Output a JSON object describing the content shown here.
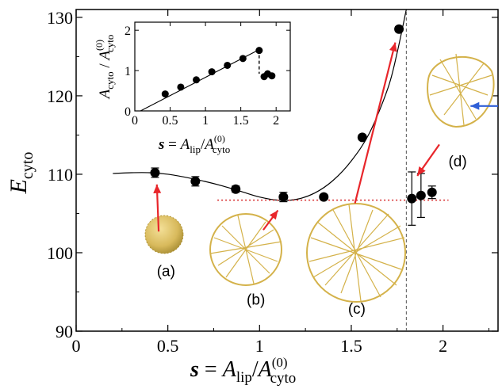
{
  "chart_data": {
    "type": "scatter",
    "main": {
      "xlabel": {
        "var": "s",
        "eq": " = ",
        "num": "A",
        "num_sub": "lip",
        "slash": "/",
        "den": "A",
        "den_sub": "cyto",
        "den_sup": "(0)"
      },
      "ylabel": {
        "var": "E",
        "sub": "cyto"
      },
      "xlim": [
        0,
        2.3
      ],
      "ylim": [
        90,
        131
      ],
      "xticks": [
        "0",
        "0.5",
        "1",
        "1.5",
        "2"
      ],
      "xtick_values": [
        0,
        0.5,
        1,
        1.5,
        2
      ],
      "yticks": [
        "90",
        "100",
        "110",
        "120",
        "130"
      ],
      "ytick_values": [
        90,
        100,
        110,
        120,
        130
      ],
      "points": [
        {
          "x": 0.43,
          "y": 110.2,
          "err": 0.6
        },
        {
          "x": 0.65,
          "y": 109.1,
          "err": 0.6
        },
        {
          "x": 0.87,
          "y": 108.1,
          "err": 0.4
        },
        {
          "x": 1.13,
          "y": 107.1,
          "err": 0.6
        },
        {
          "x": 1.35,
          "y": 107.1,
          "err": 0.3
        },
        {
          "x": 1.56,
          "y": 114.7,
          "err": 0.3
        },
        {
          "x": 1.76,
          "y": 128.5,
          "err": 0.3
        },
        {
          "x": 1.83,
          "y": 106.9,
          "err": 3.4
        },
        {
          "x": 1.88,
          "y": 107.3,
          "err": 2.8
        },
        {
          "x": 1.94,
          "y": 107.7,
          "err": 0.8
        }
      ],
      "fit_curve": [
        [
          0.2,
          110.1
        ],
        [
          0.3,
          110.2
        ],
        [
          0.4,
          110.2
        ],
        [
          0.5,
          110.0
        ],
        [
          0.6,
          109.6
        ],
        [
          0.7,
          109.1
        ],
        [
          0.8,
          108.5
        ],
        [
          0.9,
          107.8
        ],
        [
          1.0,
          107.1
        ],
        [
          1.1,
          106.7
        ],
        [
          1.2,
          106.8
        ],
        [
          1.3,
          107.6
        ],
        [
          1.4,
          109.2
        ],
        [
          1.5,
          111.7
        ],
        [
          1.6,
          115.3
        ],
        [
          1.7,
          121.0
        ],
        [
          1.75,
          125.5
        ],
        [
          1.8,
          131.0
        ]
      ],
      "dotted_level": {
        "y": 106.7,
        "x_from": 0.77,
        "x_to": 2.03,
        "color": "#d62728"
      },
      "dashed_vertical": {
        "x": 1.8,
        "y_from": 90,
        "y_to": 131,
        "color": "#555555"
      },
      "panel_labels": [
        {
          "text": "(a)",
          "x": 0.49,
          "y": 97.0
        },
        {
          "text": "(b)",
          "x": 0.98,
          "y": 93.4
        },
        {
          "text": "(c)",
          "x": 1.53,
          "y": 92.2
        },
        {
          "text": "(d)",
          "x": 2.08,
          "y": 111.0
        }
      ]
    },
    "inset": {
      "xlabel": {
        "var": "s",
        "eq": " = ",
        "num": "A",
        "num_sub": "lip",
        "slash": "/",
        "den": "A",
        "den_sub": "cyto",
        "den_sup": "(0)"
      },
      "ylabel": {
        "num": "A",
        "num_sub": "cyto",
        "slash": " / ",
        "den": "A",
        "den_sub": "cyto",
        "den_sup": "(0)"
      },
      "xlim": [
        0,
        2.2
      ],
      "ylim": [
        0,
        2.2
      ],
      "xticks": [
        "0",
        "0.5",
        "1",
        "1.5",
        "2"
      ],
      "xtick_values": [
        0,
        0.5,
        1,
        1.5,
        2
      ],
      "yticks": [
        "0",
        "1",
        "2"
      ],
      "ytick_values": [
        0,
        1,
        2
      ],
      "points": [
        {
          "x": 0.43,
          "y": 0.42
        },
        {
          "x": 0.65,
          "y": 0.59
        },
        {
          "x": 0.87,
          "y": 0.77
        },
        {
          "x": 1.09,
          "y": 0.97
        },
        {
          "x": 1.31,
          "y": 1.13
        },
        {
          "x": 1.53,
          "y": 1.3
        },
        {
          "x": 1.76,
          "y": 1.5
        },
        {
          "x": 1.83,
          "y": 0.85
        },
        {
          "x": 1.88,
          "y": 0.92
        },
        {
          "x": 1.94,
          "y": 0.87
        }
      ],
      "fit_line": [
        [
          0.08,
          0.0
        ],
        [
          1.76,
          1.52
        ]
      ],
      "drop_line": [
        [
          1.76,
          1.52
        ],
        [
          1.76,
          0.92
        ]
      ]
    },
    "colors": {
      "data": "#000000",
      "arrows": "#e8262b",
      "blue_arrow": "#2f5fd6",
      "sphere": "#d4b24a",
      "sphere_dark": "#a88a26"
    }
  }
}
